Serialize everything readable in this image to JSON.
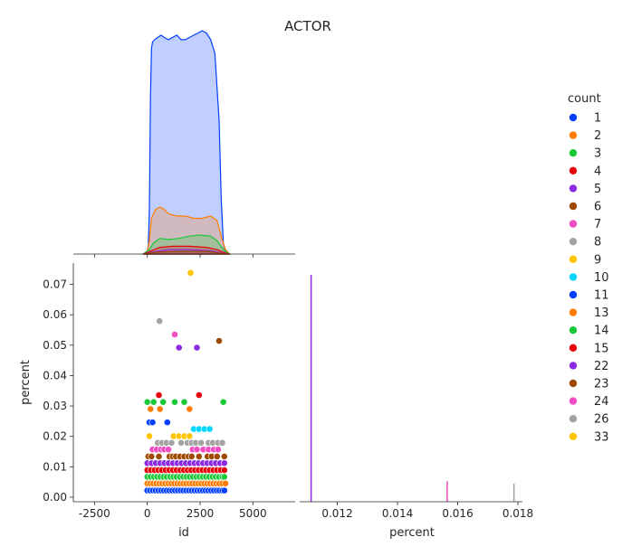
{
  "chart_data": {
    "type": "pairplot",
    "title": "ACTOR",
    "legend": {
      "title": "count",
      "placement": "right",
      "entries": [
        {
          "label": "1",
          "color": "#023eff"
        },
        {
          "label": "2",
          "color": "#ff7c00"
        },
        {
          "label": "3",
          "color": "#1ac938"
        },
        {
          "label": "4",
          "color": "#e8000b"
        },
        {
          "label": "5",
          "color": "#8b2be2"
        },
        {
          "label": "6",
          "color": "#9f4800"
        },
        {
          "label": "7",
          "color": "#f14cc1"
        },
        {
          "label": "8",
          "color": "#a3a3a3"
        },
        {
          "label": "9",
          "color": "#ffc400"
        },
        {
          "label": "10",
          "color": "#00d7ff"
        },
        {
          "label": "11",
          "color": "#023eff"
        },
        {
          "label": "13",
          "color": "#ff7c00"
        },
        {
          "label": "14",
          "color": "#1ac938"
        },
        {
          "label": "15",
          "color": "#e8000b"
        },
        {
          "label": "22",
          "color": "#8b2be2"
        },
        {
          "label": "23",
          "color": "#9f4800"
        },
        {
          "label": "24",
          "color": "#f14cc1"
        },
        {
          "label": "26",
          "color": "#a3a3a3"
        },
        {
          "label": "33",
          "color": "#ffc400"
        }
      ]
    },
    "kde_id": {
      "xlim": [
        -3500,
        7000
      ],
      "curves": [
        {
          "color": "#023eff",
          "points": [
            [
              -200,
              0
            ],
            [
              0,
              0.01
            ],
            [
              50,
              0.04
            ],
            [
              100,
              0.2
            ],
            [
              150,
              0.7
            ],
            [
              200,
              0.92
            ],
            [
              250,
              0.95
            ],
            [
              350,
              0.96
            ],
            [
              500,
              0.97
            ],
            [
              650,
              0.98
            ],
            [
              800,
              0.97
            ],
            [
              1000,
              0.96
            ],
            [
              1200,
              0.97
            ],
            [
              1400,
              0.98
            ],
            [
              1600,
              0.96
            ],
            [
              1800,
              0.96
            ],
            [
              2000,
              0.97
            ],
            [
              2200,
              0.98
            ],
            [
              2400,
              0.99
            ],
            [
              2600,
              1.0
            ],
            [
              2800,
              0.99
            ],
            [
              3000,
              0.96
            ],
            [
              3200,
              0.9
            ],
            [
              3400,
              0.6
            ],
            [
              3500,
              0.25
            ],
            [
              3600,
              0.05
            ],
            [
              3700,
              0.01
            ],
            [
              3900,
              0
            ]
          ]
        },
        {
          "color": "#ff7c00",
          "points": [
            [
              -200,
              0
            ],
            [
              0,
              0.01
            ],
            [
              100,
              0.06
            ],
            [
              200,
              0.16
            ],
            [
              400,
              0.2
            ],
            [
              600,
              0.21
            ],
            [
              800,
              0.2
            ],
            [
              1000,
              0.18
            ],
            [
              1400,
              0.17
            ],
            [
              1800,
              0.17
            ],
            [
              2200,
              0.16
            ],
            [
              2600,
              0.16
            ],
            [
              3000,
              0.17
            ],
            [
              3300,
              0.15
            ],
            [
              3500,
              0.08
            ],
            [
              3700,
              0.02
            ],
            [
              3900,
              0
            ]
          ]
        },
        {
          "color": "#1ac938",
          "points": [
            [
              -200,
              0
            ],
            [
              100,
              0.02
            ],
            [
              300,
              0.05
            ],
            [
              600,
              0.07
            ],
            [
              1000,
              0.065
            ],
            [
              1500,
              0.07
            ],
            [
              2000,
              0.08
            ],
            [
              2500,
              0.085
            ],
            [
              3000,
              0.08
            ],
            [
              3300,
              0.06
            ],
            [
              3600,
              0.02
            ],
            [
              3900,
              0
            ]
          ]
        },
        {
          "color": "#e8000b",
          "points": [
            [
              -200,
              0
            ],
            [
              200,
              0.015
            ],
            [
              600,
              0.03
            ],
            [
              1200,
              0.035
            ],
            [
              2000,
              0.035
            ],
            [
              2800,
              0.03
            ],
            [
              3300,
              0.02
            ],
            [
              3700,
              0.005
            ],
            [
              3900,
              0
            ]
          ]
        },
        {
          "color": "#8b2be2",
          "points": [
            [
              -200,
              0
            ],
            [
              300,
              0.01
            ],
            [
              1000,
              0.02
            ],
            [
              2000,
              0.02
            ],
            [
              3000,
              0.015
            ],
            [
              3800,
              0
            ]
          ]
        },
        {
          "color": "#9f4800",
          "points": [
            [
              -200,
              0
            ],
            [
              400,
              0.008
            ],
            [
              1500,
              0.012
            ],
            [
              2800,
              0.012
            ],
            [
              3800,
              0
            ]
          ]
        }
      ]
    },
    "scatter": {
      "xlabel": "id",
      "ylabel": "percent",
      "xlim": [
        -3500,
        7000
      ],
      "ylim": [
        -0.0015,
        0.077
      ],
      "xticks": [
        -2500,
        0,
        2500,
        5000
      ],
      "yticks": [
        0.0,
        0.01,
        0.02,
        0.03,
        0.04,
        0.05,
        0.06,
        0.07
      ],
      "highlight_points": [
        {
          "x": 2050,
          "y": 0.0738,
          "color": "#ffc400"
        },
        {
          "x": 580,
          "y": 0.0579,
          "color": "#a3a3a3"
        },
        {
          "x": 1300,
          "y": 0.0535,
          "color": "#f14cc1"
        },
        {
          "x": 3400,
          "y": 0.0514,
          "color": "#9f4800"
        },
        {
          "x": 1500,
          "y": 0.0492,
          "color": "#8b2be2"
        },
        {
          "x": 2350,
          "y": 0.0492,
          "color": "#8b2be2"
        },
        {
          "x": 550,
          "y": 0.0336,
          "color": "#e8000b"
        },
        {
          "x": 2450,
          "y": 0.0336,
          "color": "#e8000b"
        },
        {
          "x": 0,
          "y": 0.0313,
          "color": "#1ac938"
        },
        {
          "x": 300,
          "y": 0.0313,
          "color": "#1ac938"
        },
        {
          "x": 750,
          "y": 0.0313,
          "color": "#1ac938"
        },
        {
          "x": 1300,
          "y": 0.0313,
          "color": "#1ac938"
        },
        {
          "x": 1750,
          "y": 0.0313,
          "color": "#1ac938"
        },
        {
          "x": 3600,
          "y": 0.0313,
          "color": "#1ac938"
        },
        {
          "x": 150,
          "y": 0.029,
          "color": "#ff7c00"
        },
        {
          "x": 600,
          "y": 0.029,
          "color": "#ff7c00"
        },
        {
          "x": 2000,
          "y": 0.029,
          "color": "#ff7c00"
        },
        {
          "x": 100,
          "y": 0.0246,
          "color": "#023eff"
        },
        {
          "x": 250,
          "y": 0.0246,
          "color": "#023eff"
        },
        {
          "x": 950,
          "y": 0.0246,
          "color": "#023eff"
        },
        {
          "x": 3650,
          "y": 0.0022,
          "color": "#023eff"
        },
        {
          "x": 3700,
          "y": 0.0045,
          "color": "#ff7c00"
        },
        {
          "x": 3650,
          "y": 0.0067,
          "color": "#1ac938"
        }
      ],
      "bands": [
        {
          "y": 0.0224,
          "color": "#00d7ff",
          "xs": [
            2200,
            2450,
            2700,
            2950
          ]
        },
        {
          "y": 0.0201,
          "color": "#ffc400",
          "xs": [
            100,
            1250,
            1500,
            1750,
            2000
          ]
        },
        {
          "y": 0.0179,
          "color": "#a3a3a3",
          "xs": [
            500,
            700,
            900,
            1150,
            1600,
            1900,
            2100,
            2300,
            2550,
            2900,
            3100,
            3350,
            3550
          ]
        },
        {
          "y": 0.0157,
          "color": "#f14cc1",
          "xs": [
            250,
            450,
            650,
            800,
            1000,
            2150,
            2350,
            2650,
            2900,
            3150,
            3350
          ]
        },
        {
          "y": 0.0134,
          "color": "#9f4800",
          "xs": [
            50,
            200,
            550,
            1050,
            1200,
            1350,
            1550,
            1750,
            1950,
            2100,
            2450,
            2850,
            3050,
            3300,
            3650
          ]
        },
        {
          "y": 0.0112,
          "color": "#8b2be2",
          "range": [
            0,
            3650
          ],
          "count": 19
        },
        {
          "y": 0.0089,
          "color": "#e8000b",
          "range": [
            0,
            3650
          ],
          "count": 22
        },
        {
          "y": 0.0067,
          "color": "#1ac938",
          "range": [
            0,
            3550
          ],
          "count": 24
        },
        {
          "y": 0.0045,
          "color": "#ff7c00",
          "range": [
            0,
            3550
          ],
          "count": 26
        },
        {
          "y": 0.0022,
          "color": "#023eff",
          "range": [
            0,
            3550
          ],
          "count": 28
        }
      ]
    },
    "kde_percent": {
      "xlabel": "percent",
      "xlim": [
        0.01075,
        0.01815
      ],
      "xticks": [
        0.012,
        0.014,
        0.016,
        0.018
      ],
      "spikes": [
        {
          "x": 0.01113,
          "color": "#8b2be2",
          "height": 1.0
        },
        {
          "x": 0.01565,
          "color": "#f14cc1",
          "height": 0.09
        },
        {
          "x": 0.01787,
          "color": "#a3a3a3",
          "height": 0.08
        }
      ]
    }
  }
}
